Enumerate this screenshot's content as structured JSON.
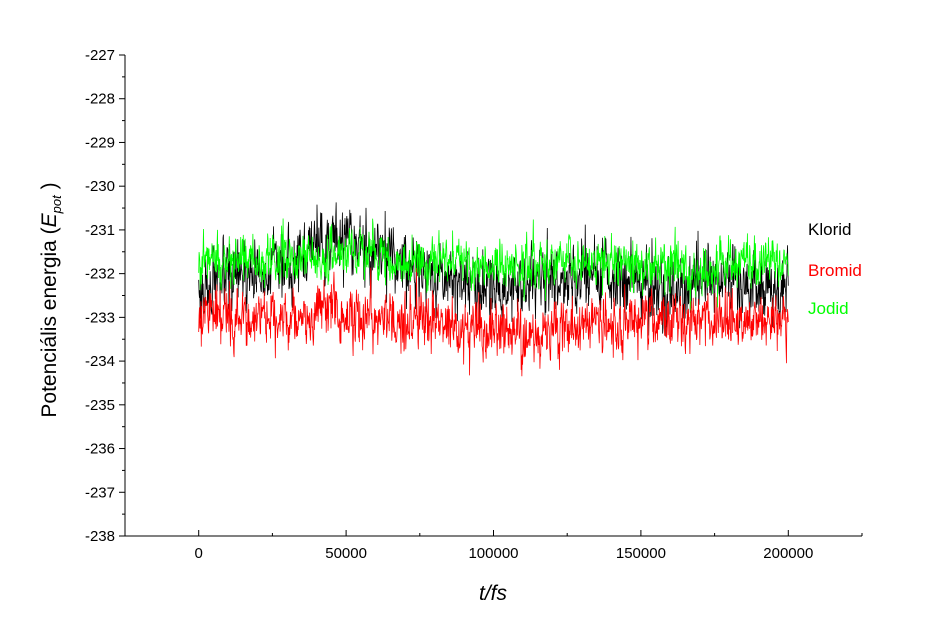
{
  "chart_data": {
    "type": "line",
    "xlabel": "t/fs",
    "ylabel_main": "Potenciális energia (",
    "ylabel_symbol": "E",
    "ylabel_sub": "pot",
    "ylabel_close": " )",
    "xlim": [
      -25000,
      225000
    ],
    "ylim": [
      -238,
      -227
    ],
    "xticks": [
      0,
      50000,
      100000,
      150000,
      200000
    ],
    "yticks": [
      -238,
      -237,
      -236,
      -235,
      -234,
      -233,
      -232,
      -231,
      -230,
      -229,
      -228,
      -227
    ],
    "grid": false,
    "legend_position": "right",
    "series": [
      {
        "name": "Klorid",
        "color": "#000000",
        "x": [
          0,
          10000,
          20000,
          30000,
          40000,
          50000,
          60000,
          70000,
          80000,
          90000,
          100000,
          110000,
          120000,
          130000,
          140000,
          150000,
          160000,
          170000,
          180000,
          190000,
          200000
        ],
        "values": [
          -232.4,
          -232.2,
          -232.0,
          -231.8,
          -231.4,
          -231.2,
          -231.4,
          -231.8,
          -232.0,
          -232.2,
          -232.3,
          -232.2,
          -232.1,
          -232.0,
          -232.1,
          -232.2,
          -232.4,
          -232.3,
          -232.1,
          -232.2,
          -232.3
        ],
        "noise": 1.0
      },
      {
        "name": "Bromid",
        "color": "#ff0000",
        "x": [
          0,
          10000,
          20000,
          30000,
          40000,
          50000,
          60000,
          70000,
          80000,
          90000,
          100000,
          110000,
          120000,
          130000,
          140000,
          150000,
          160000,
          170000,
          180000,
          190000,
          200000
        ],
        "values": [
          -232.9,
          -233.0,
          -233.0,
          -233.0,
          -232.9,
          -232.9,
          -233.0,
          -233.1,
          -233.1,
          -233.2,
          -233.4,
          -233.5,
          -233.3,
          -233.2,
          -233.2,
          -233.1,
          -233.1,
          -233.0,
          -233.0,
          -233.1,
          -233.0
        ],
        "noise": 0.85
      },
      {
        "name": "Jodid",
        "color": "#00ff00",
        "x": [
          0,
          10000,
          20000,
          30000,
          40000,
          50000,
          60000,
          70000,
          80000,
          90000,
          100000,
          110000,
          120000,
          130000,
          140000,
          150000,
          160000,
          170000,
          180000,
          190000,
          200000
        ],
        "values": [
          -231.6,
          -231.7,
          -231.7,
          -231.6,
          -231.6,
          -231.6,
          -231.6,
          -231.7,
          -231.7,
          -231.7,
          -231.8,
          -231.8,
          -231.7,
          -231.7,
          -231.7,
          -231.8,
          -231.8,
          -232.0,
          -231.8,
          -231.7,
          -231.7
        ],
        "noise": 0.75
      }
    ]
  }
}
